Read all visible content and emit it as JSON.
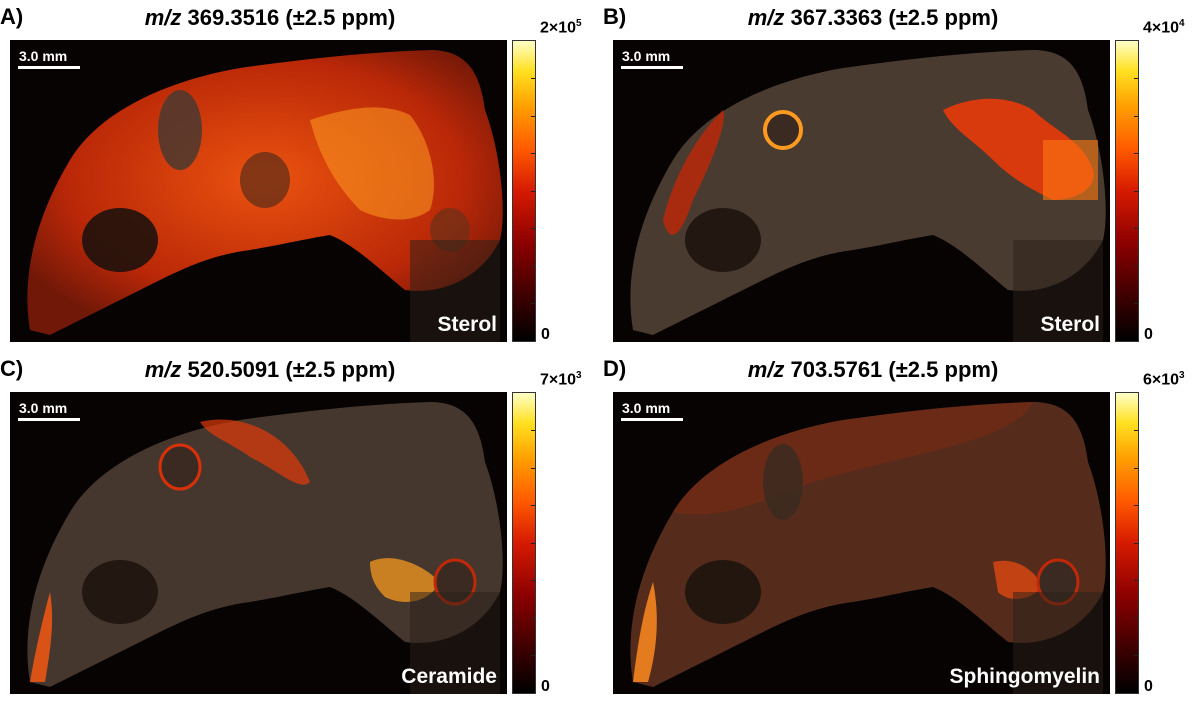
{
  "panels": [
    {
      "letter": "A)",
      "mz_prefix": "m/z",
      "mz_value": "369.3516 (±2.5 ppm)",
      "scale": "3.0 mm",
      "lipid": "Sterol",
      "cb_max_base": "2×10",
      "cb_max_exp": "5",
      "cb_min": "0"
    },
    {
      "letter": "B)",
      "mz_prefix": "m/z",
      "mz_value": "367.3363 (±2.5 ppm)",
      "scale": "3.0 mm",
      "lipid": "Sterol",
      "cb_max_base": "4×10",
      "cb_max_exp": "4",
      "cb_min": "0"
    },
    {
      "letter": "C)",
      "mz_prefix": "m/z",
      "mz_value": "520.5091 (±2.5 ppm)",
      "scale": "3.0 mm",
      "lipid": "Ceramide",
      "cb_max_base": "7×10",
      "cb_max_exp": "3",
      "cb_min": "0"
    },
    {
      "letter": "D)",
      "mz_prefix": "m/z",
      "mz_value": "703.5761 (±2.5 ppm)",
      "scale": "3.0 mm",
      "lipid": "Sphingomyelin",
      "cb_max_base": "6×10",
      "cb_max_exp": "3",
      "cb_min": "0"
    }
  ],
  "colors": {
    "background": "#060302",
    "tissue_base": "#4a3a30",
    "hot_low": "#8a0000",
    "hot_mid": "#ff4000",
    "hot_high": "#ffe020"
  }
}
